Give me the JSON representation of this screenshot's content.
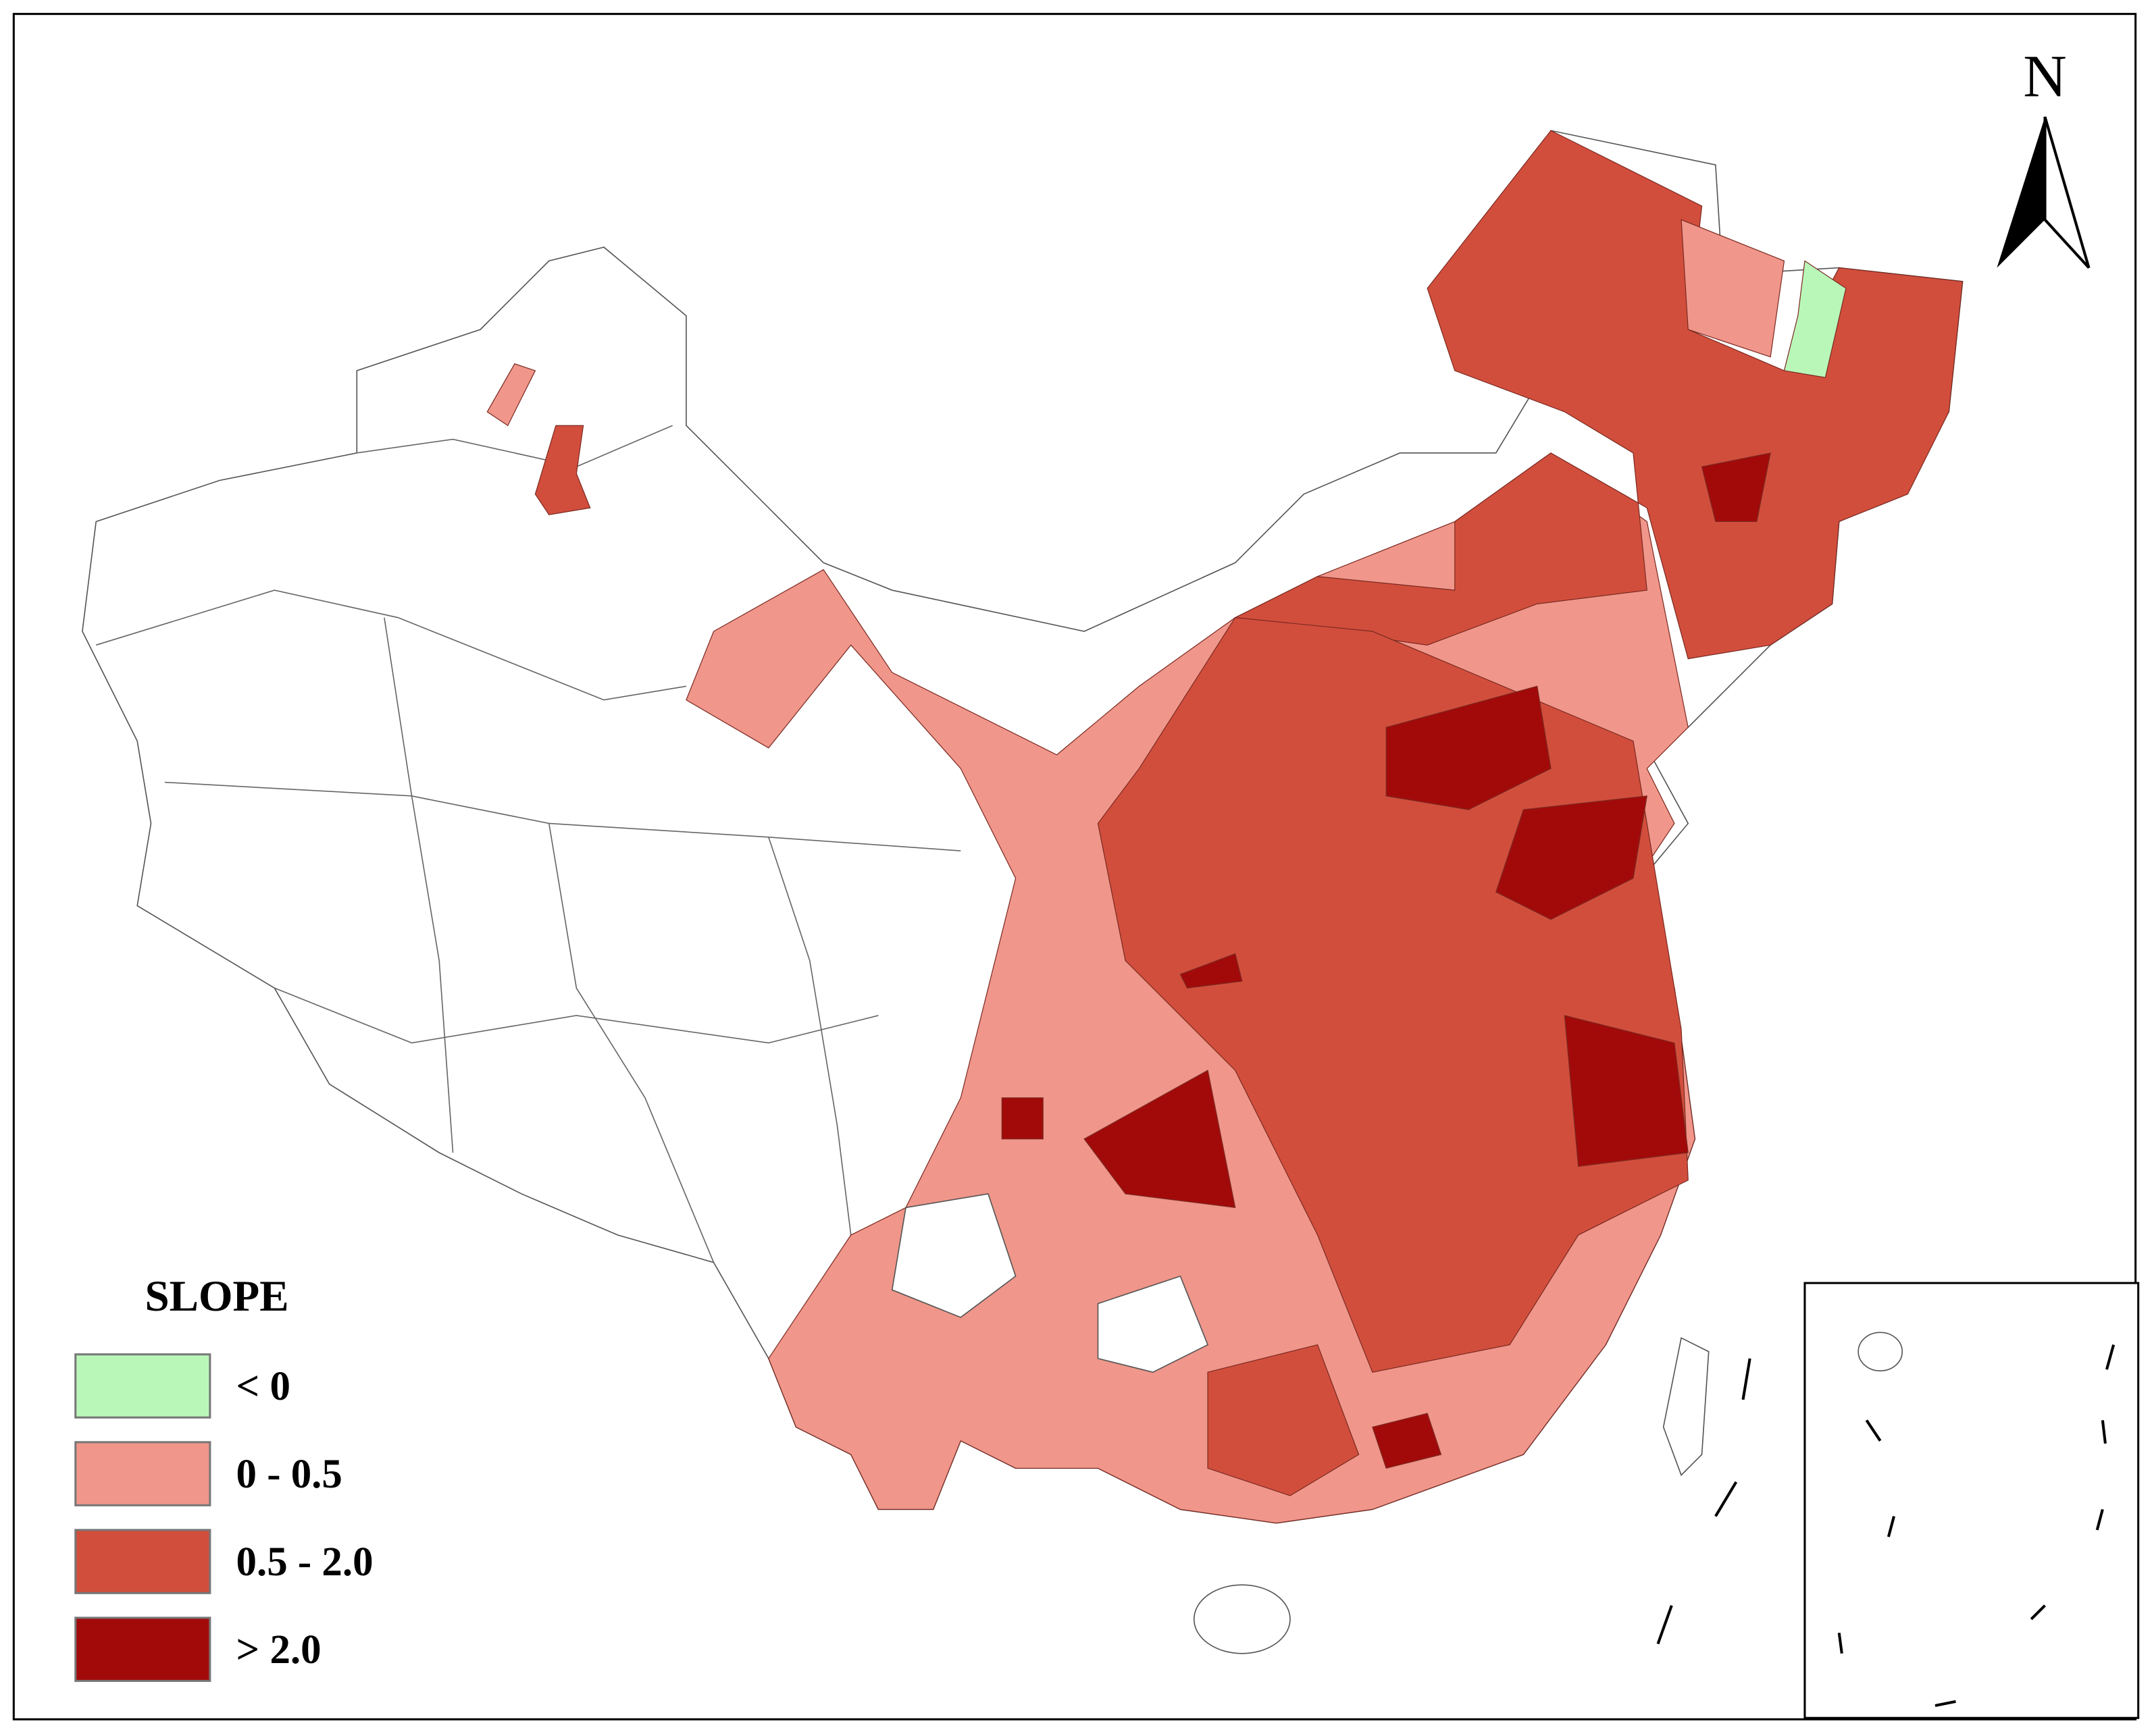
{
  "map": {
    "north_label": "N",
    "legend": {
      "title": "SLOPE",
      "items": [
        {
          "label": "< 0",
          "color": "#b9f7b9"
        },
        {
          "label": "0 - 0.5",
          "color": "#f0968a"
        },
        {
          "label": "0.5 - 2.0",
          "color": "#d24e3c"
        },
        {
          "label": "> 2.0",
          "color": "#a20a0a"
        }
      ]
    }
  }
}
